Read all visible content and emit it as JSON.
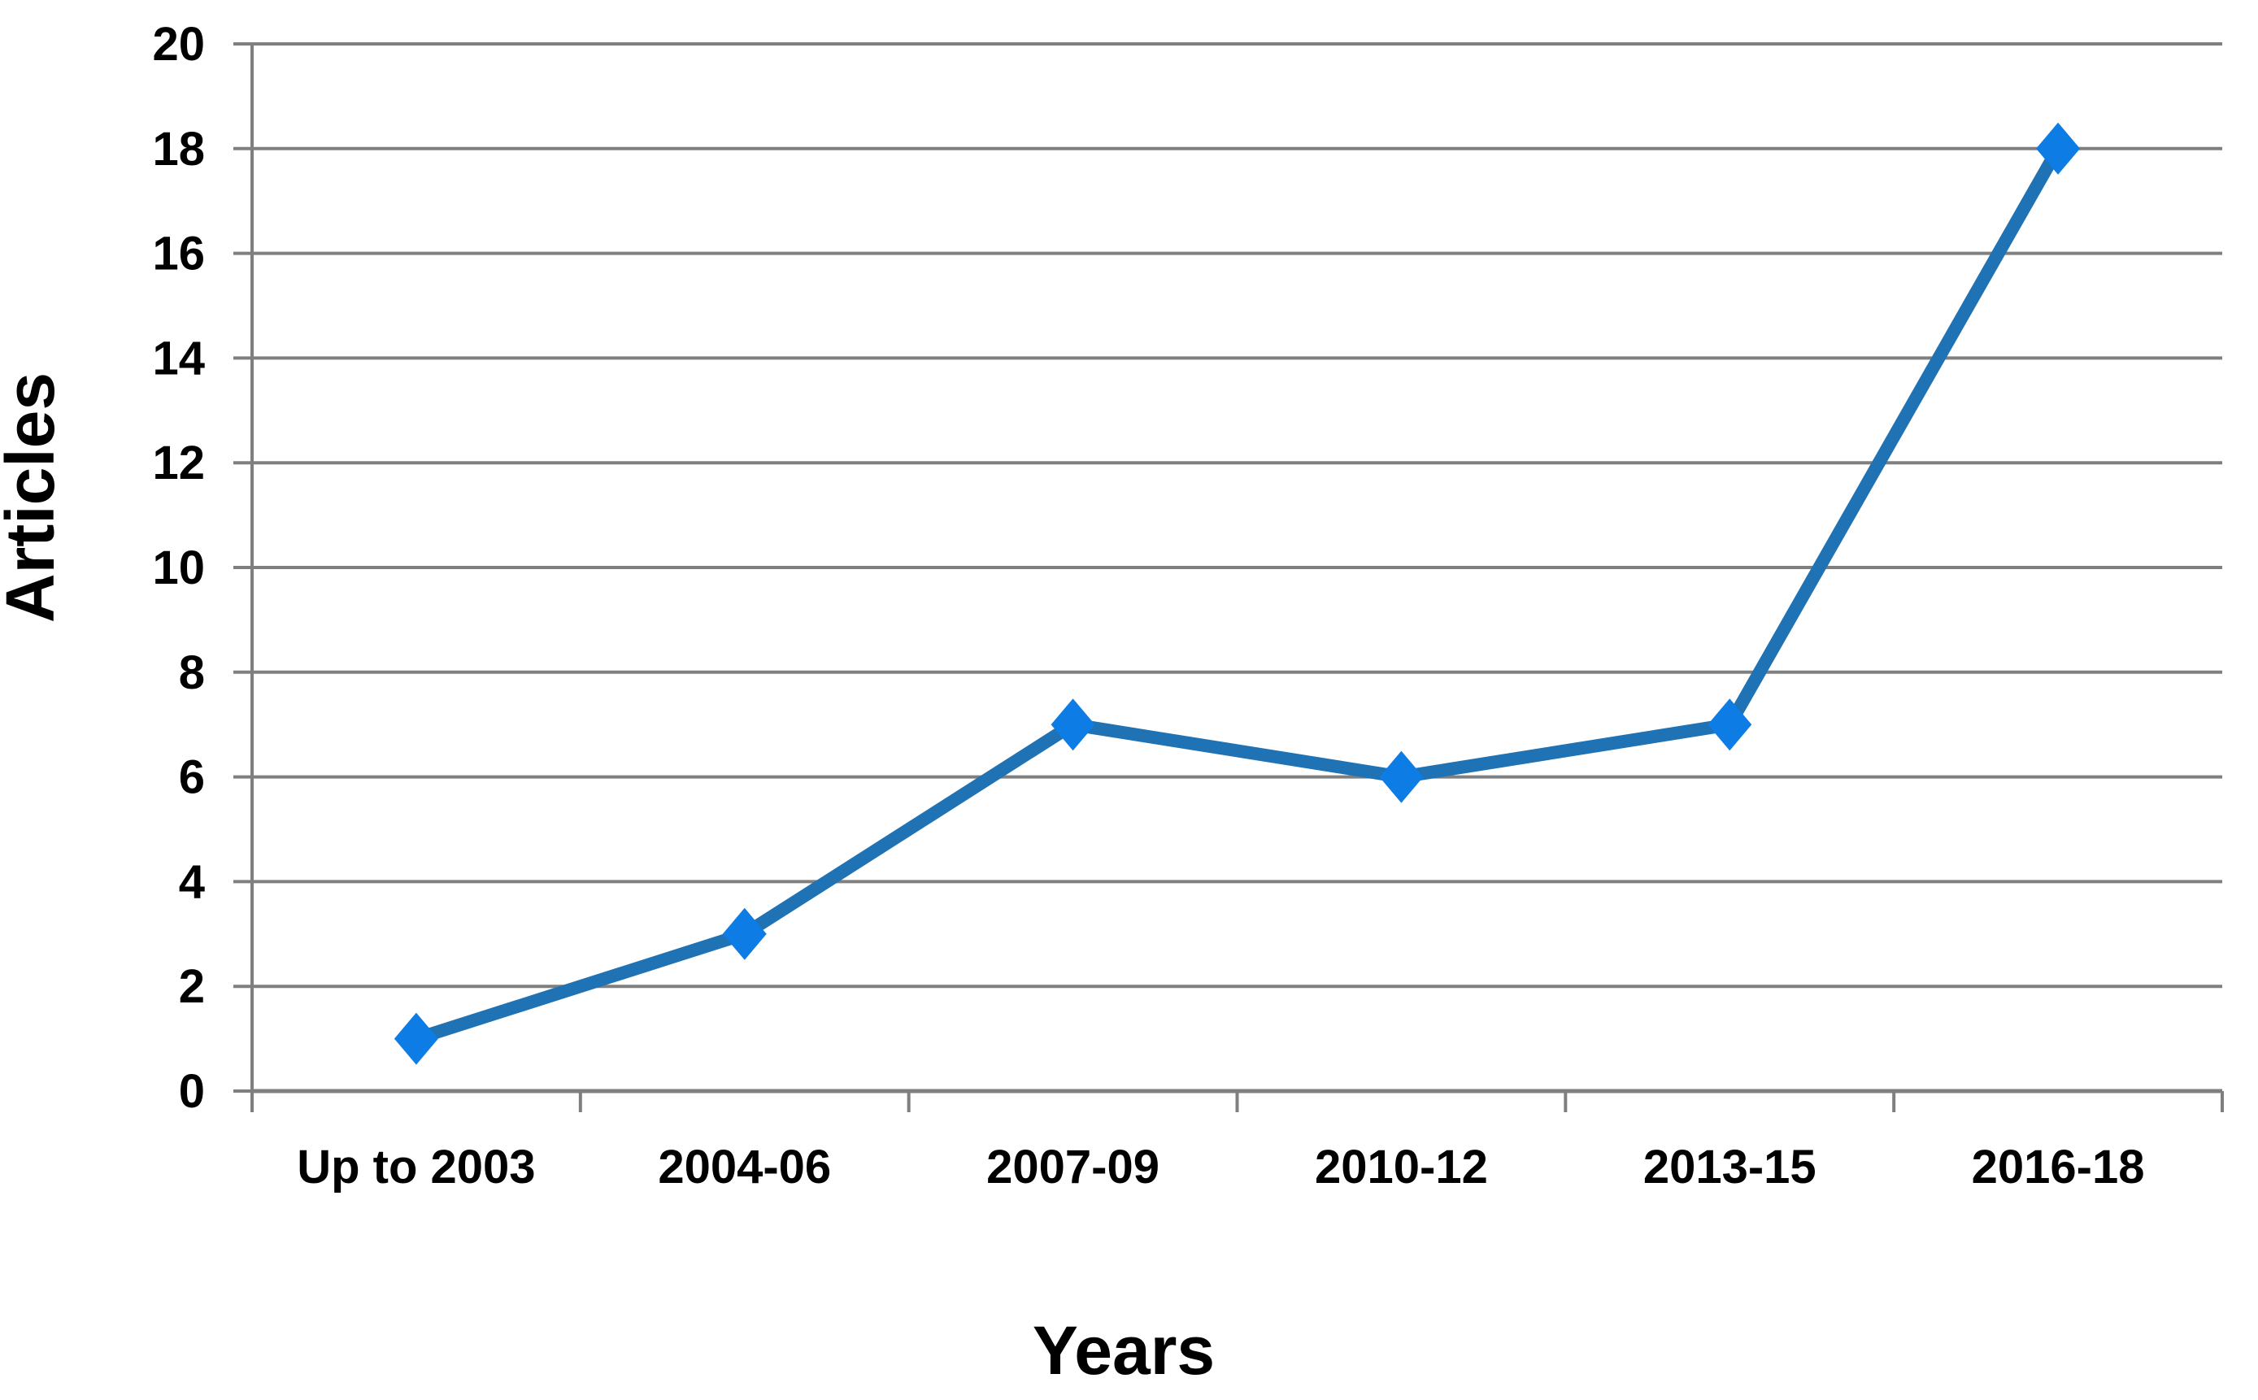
{
  "chart_data": {
    "type": "line",
    "title": "",
    "categories": [
      "Up to 2003",
      "2004-06",
      "2007-09",
      "2010-12",
      "2013-15",
      "2016-18"
    ],
    "series": [
      {
        "name": "Articles",
        "values": [
          1,
          3,
          7,
          6,
          7,
          18
        ]
      }
    ],
    "xlabel": "Years",
    "ylabel": "Articles",
    "ylim": [
      0,
      20
    ],
    "ytick_step": 2,
    "ytick_labels": [
      "0",
      "2",
      "4",
      "6",
      "8",
      "10",
      "12",
      "14",
      "16",
      "18",
      "20"
    ],
    "grid": true,
    "legend_position": "none",
    "marker_shape": "diamond",
    "colors": {
      "line": "#1f72b4",
      "marker": "#0d7ce4",
      "gridline": "#7f7f7f",
      "axis": "#7f7f7f",
      "text": "#000000",
      "background": "#ffffff"
    }
  }
}
